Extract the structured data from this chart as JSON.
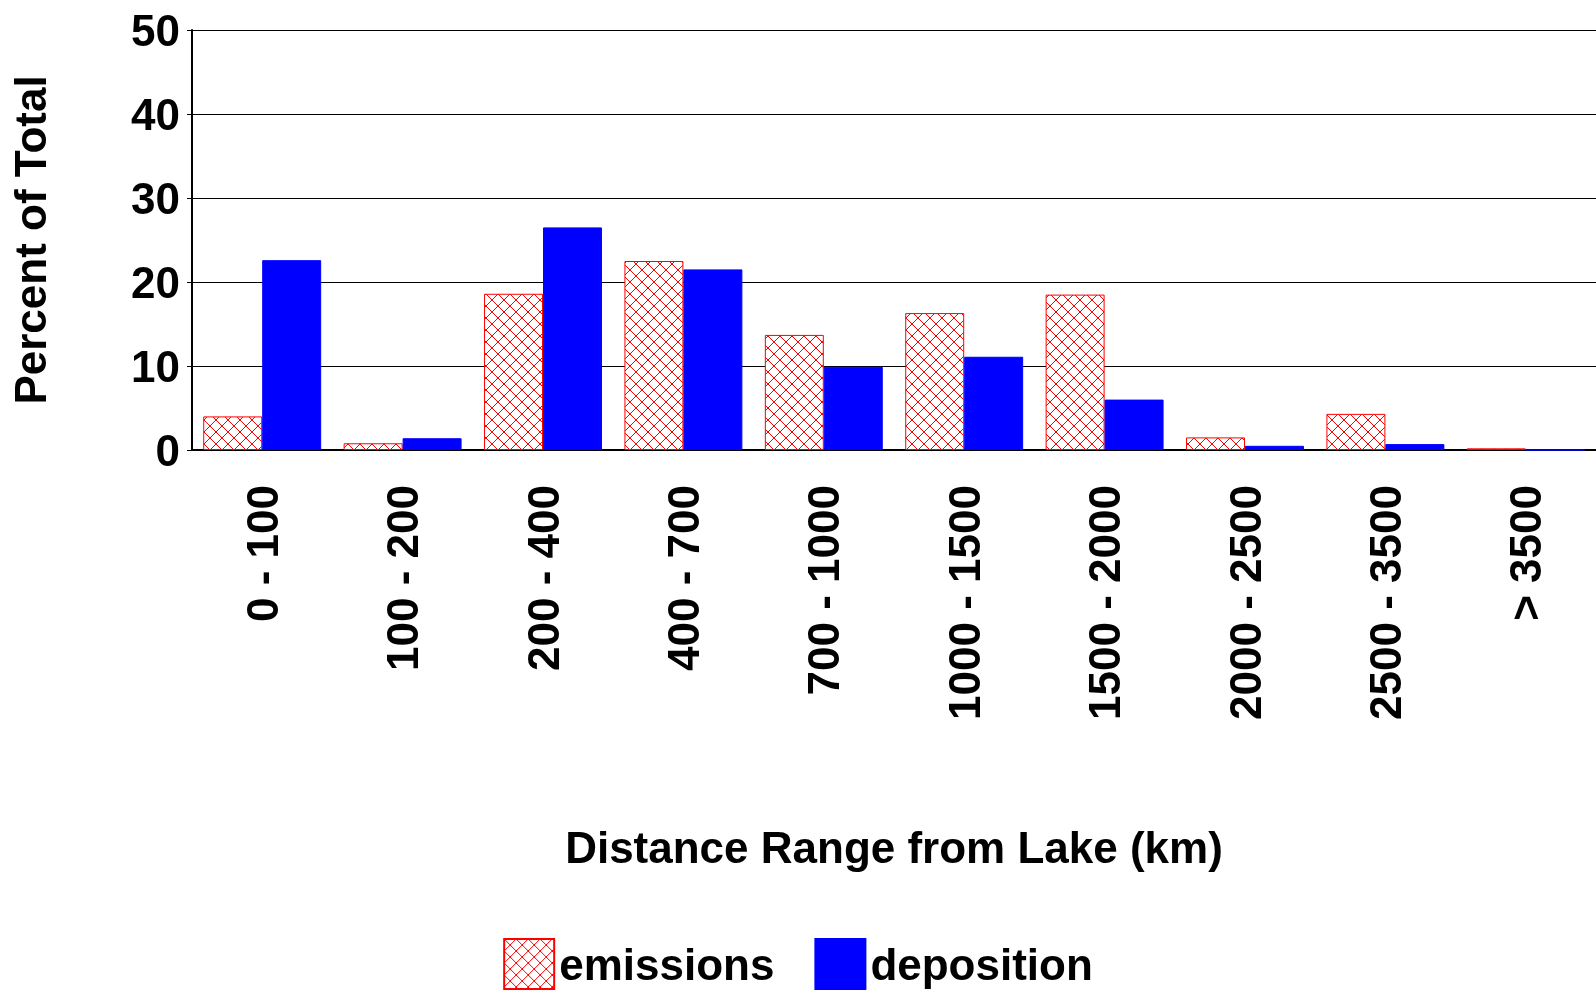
{
  "chart_data": {
    "type": "bar",
    "xlabel": "Distance Range from Lake (km)",
    "ylabel": "Percent of Total",
    "categories": [
      "0 - 100",
      "100 - 200",
      "200 - 400",
      "400 - 700",
      "700 - 1000",
      "1000 - 1500",
      "1500 - 2000",
      "2000 - 2500",
      "2500 - 3500",
      "> 3500"
    ],
    "series": [
      {
        "name": "emissions",
        "color": "#ff0000",
        "values": [
          4.0,
          0.8,
          18.6,
          22.5,
          13.7,
          16.3,
          18.5,
          1.5,
          4.3,
          0.2
        ]
      },
      {
        "name": "deposition",
        "color": "#0000ff",
        "values": [
          22.6,
          1.4,
          26.5,
          21.5,
          9.9,
          11.1,
          6.0,
          0.5,
          0.7,
          0
        ]
      }
    ],
    "ylim": [
      0,
      50
    ],
    "yticks": [
      0,
      10,
      20,
      30,
      40,
      50
    ],
    "grid": "y",
    "legend": "bottom"
  }
}
